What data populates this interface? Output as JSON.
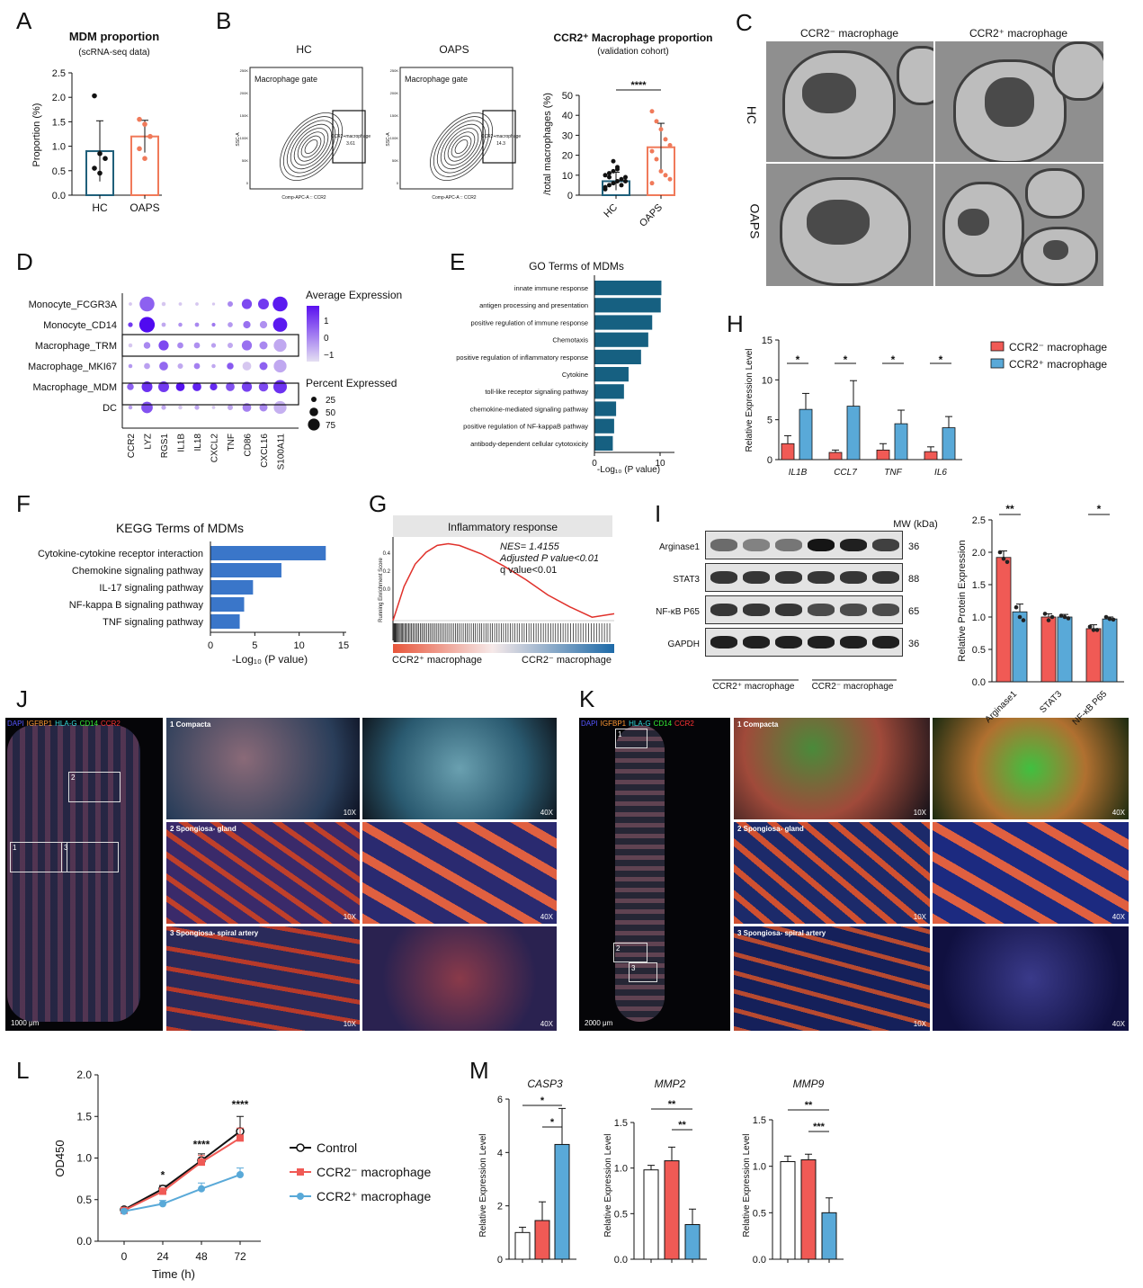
{
  "panels": {
    "A": "A",
    "B": "B",
    "C": "C",
    "D": "D",
    "E": "E",
    "F": "F",
    "G": "G",
    "H": "H",
    "I": "I",
    "J": "J",
    "K": "K",
    "L": "L",
    "M": "M"
  },
  "A": {
    "title": "MDM proportion",
    "subtitle": "(scRNA-seq data)",
    "ylabel": "Proportion (%)",
    "yticks": [
      "0.0",
      "0.5",
      "1.0",
      "1.5",
      "2.0",
      "2.5"
    ],
    "groups": [
      "HC",
      "OAPS"
    ]
  },
  "B": {
    "hc_title": "HC",
    "oaps_title": "OAPS",
    "gate": "Macrophage gate",
    "ssc": "SSC-A",
    "xaxis": "Comp-APC-A :: CCR2",
    "gate_label": "CCR2+macrophage",
    "hc_pct": "3.61",
    "oaps_pct": "14.3",
    "flow_yticks": [
      "250K",
      "200K",
      "150K",
      "100K",
      "50K",
      "0"
    ],
    "chart_title": "CCR2⁺ Macrophage proportion",
    "chart_subtitle": "(validation cohort)",
    "ylabel": "/total macrophages (%)",
    "yticks": [
      "0",
      "10",
      "20",
      "30",
      "40",
      "50"
    ],
    "sig": "****",
    "groups": [
      "HC",
      "OAPS"
    ]
  },
  "C": {
    "col1": "CCR2⁻ macrophage",
    "col2": "CCR2⁺ macrophage",
    "row1": "HC",
    "row2": "OAPS"
  },
  "D": {
    "rows": [
      "Monocyte_FCGR3A",
      "Monocyte_CD14",
      "Macrophage_TRM",
      "Macrophage_MKI67",
      "Macrophage_MDM",
      "DC"
    ],
    "genes": [
      "CCR2",
      "LYZ",
      "RGS1",
      "IL1B",
      "IL18",
      "CXCL2",
      "TNF",
      "CD86",
      "CXCL16",
      "S100A11"
    ],
    "legend_expr": "Average Expression",
    "expr_ticks": [
      "1",
      "0",
      "−1"
    ],
    "legend_pct": "Percent Expressed",
    "pct_ticks": [
      "25",
      "50",
      "75"
    ]
  },
  "E": {
    "title": "GO Terms of MDMs",
    "terms": [
      "innate immune response",
      "antigen processing and presentation",
      "positive regulation of immune response",
      "Chemotaxis",
      "positive regulation of inflammatory response",
      "Cytokine",
      "toll-like receptor signaling pathway",
      "chemokine-mediated signaling pathway",
      "positive regulation of NF-kappaB pathway",
      "antibody-dependent cellular cytotoxicity"
    ],
    "xticks": [
      "0",
      "10"
    ],
    "xlabel": "-Log₁₀ (P value)"
  },
  "F": {
    "title": "KEGG Terms of MDMs",
    "terms": [
      "Cytokine-cytokine receptor interaction",
      "Chemokine signaling pathway",
      "IL-17 signaling pathway",
      "NF-kappa B signaling pathway",
      "TNF signaling pathway"
    ],
    "xticks": [
      "0",
      "5",
      "10",
      "15"
    ],
    "xlabel": "-Log₁₀ (P value)"
  },
  "G": {
    "title": "Inflammatory response",
    "ylabel": "Running Enrichment Score",
    "nes": "NES= 1.4155",
    "adjp": "Adjusted P value<0.01",
    "qval": "q value<0.01",
    "yticks": [
      "0.4",
      "0.2",
      "0.0"
    ],
    "left": "CCR2⁺ macrophage",
    "right": "CCR2⁻ macrophage"
  },
  "H": {
    "ylabel": "Relative Expression Level",
    "yticks": [
      "0",
      "5",
      "10",
      "15"
    ],
    "genes": [
      "IL1B",
      "CCL7",
      "TNF",
      "IL6"
    ],
    "sig": "*",
    "legend": [
      "CCR2⁻ macrophage",
      "CCR2⁺ macrophage"
    ]
  },
  "I": {
    "mw": "MW (kDa)",
    "proteins": [
      "Arginase1",
      "STAT3",
      "NF-κB P65",
      "GAPDH"
    ],
    "kda": [
      "36",
      "88",
      "65",
      "36"
    ],
    "groups": [
      "CCR2⁺ macrophage",
      "CCR2⁻ macrophage"
    ],
    "ylabel": "Relative Protein Expression",
    "yticks": [
      "0.0",
      "0.5",
      "1.0",
      "1.5",
      "2.0",
      "2.5"
    ],
    "categories": [
      "Arginase1",
      "STAT3",
      "NF-κB P65"
    ],
    "sig1": "**",
    "sig3": "*"
  },
  "J": {
    "stain_labels": [
      "DAPI",
      "IGFBP1",
      "HLA-G",
      "CD14",
      "CCR2"
    ],
    "rows": [
      "1 Compacta",
      "2 Spongiosa- gland",
      "3 Spongiosa- spiral artery"
    ],
    "mag10": "10X",
    "mag40": "40X",
    "scale": "1000 μm",
    "boxes": [
      "1",
      "2",
      "3"
    ]
  },
  "K": {
    "stain_labels": [
      "DAPI",
      "IGFBP1",
      "HLA-G",
      "CD14",
      "CCR2"
    ],
    "rows": [
      "1 Compacta",
      "2 Spongiosa- gland",
      "3 Spongiosa- spiral artery"
    ],
    "mag10": "10X",
    "mag40": "40X",
    "scale": "2000 μm",
    "boxes": [
      "1",
      "2",
      "3"
    ]
  },
  "L": {
    "ylabel": "OD450",
    "xlabel": "Time (h)",
    "yticks": [
      "0.0",
      "0.5",
      "1.0",
      "1.5",
      "2.0"
    ],
    "xticks": [
      "0",
      "24",
      "48",
      "72"
    ],
    "sig": [
      "*",
      "****",
      "****"
    ],
    "legend": [
      "Control",
      "CCR2⁻ macrophage",
      "CCR2⁺ macrophage"
    ]
  },
  "M": {
    "genes": [
      "CASP3",
      "MMP2",
      "MMP9"
    ],
    "ylabel": "Relative Expression Level",
    "casp3_yticks": [
      "0",
      "2",
      "4",
      "6"
    ],
    "mmp2_yticks": [
      "0.0",
      "0.5",
      "1.0",
      "1.5"
    ],
    "mmp9_yticks": [
      "0.0",
      "0.5",
      "1.0",
      "1.5"
    ],
    "casp3_sig": [
      "*",
      "*"
    ],
    "mmp2_sig": [
      "**",
      "**"
    ],
    "mmp9_sig": [
      "**",
      "***"
    ]
  },
  "colors": {
    "teal": "#1f5f7a",
    "salmon": "#f07a5a",
    "red": "#f05a55",
    "blue": "#59a9d8",
    "navy": "#166081",
    "kegg": "#3a76c9",
    "gsea": "#e0302a"
  },
  "chart_data": [
    {
      "type": "bar",
      "panel": "A",
      "categories": [
        "HC",
        "OAPS"
      ],
      "values": [
        0.9,
        1.2
      ],
      "errors": [
        0.62,
        0.33
      ],
      "points": [
        [
          2.03,
          0.85,
          0.75,
          0.55,
          0.45
        ],
        [
          1.55,
          1.45,
          1.2,
          0.95,
          0.75
        ]
      ],
      "ylabel": "Proportion (%)",
      "ylim": [
        0,
        2.5
      ]
    },
    {
      "type": "bar",
      "panel": "B",
      "categories": [
        "HC",
        "OAPS"
      ],
      "values": [
        7,
        24
      ],
      "errors": [
        4.5,
        12
      ],
      "ylabel": "/total macrophages (%)",
      "ylim": [
        0,
        50
      ]
    },
    {
      "type": "heatmap",
      "panel": "D",
      "rows": [
        "Monocyte_FCGR3A",
        "Monocyte_CD14",
        "Macrophage_TRM",
        "Macrophage_MKI67",
        "Macrophage_MDM",
        "DC"
      ],
      "genes": [
        "CCR2",
        "LYZ",
        "RGS1",
        "IL1B",
        "IL18",
        "CXCL2",
        "TNF",
        "CD86",
        "CXCL16",
        "S100A11"
      ],
      "expr": [
        [
          -1,
          0.3,
          -1,
          -1,
          -1,
          -1,
          -0.2,
          0.6,
          0.8,
          1.2
        ],
        [
          0.8,
          1.4,
          -0.6,
          -0.3,
          -0.2,
          0,
          -0.4,
          0.1,
          -0.3,
          1.2
        ],
        [
          -1,
          -0.2,
          0.6,
          -0.2,
          -0.3,
          -0.5,
          -0.6,
          0.1,
          -0.2,
          -0.6
        ],
        [
          -0.4,
          -0.5,
          0.2,
          -0.6,
          -0.1,
          -0.6,
          0.4,
          -1,
          0.3,
          -0.6
        ],
        [
          0.3,
          0.9,
          0.8,
          1.3,
          1.1,
          1.0,
          0.5,
          0.7,
          0.6,
          0.9
        ],
        [
          -0.5,
          0.5,
          -0.6,
          -1,
          -0.6,
          -1,
          -0.6,
          -0.1,
          -0.2,
          -0.7
        ]
      ],
      "pct": [
        [
          5,
          90,
          10,
          5,
          5,
          2,
          20,
          55,
          60,
          90
        ],
        [
          15,
          95,
          12,
          10,
          12,
          8,
          18,
          35,
          35,
          85
        ],
        [
          10,
          30,
          55,
          25,
          25,
          15,
          20,
          55,
          40,
          75
        ],
        [
          10,
          25,
          45,
          20,
          25,
          10,
          30,
          45,
          40,
          75
        ],
        [
          30,
          60,
          60,
          45,
          45,
          35,
          45,
          55,
          50,
          80
        ],
        [
          10,
          65,
          15,
          10,
          15,
          5,
          20,
          45,
          40,
          75
        ]
      ]
    },
    {
      "type": "bar",
      "panel": "E",
      "orientation": "horizontal",
      "categories": [
        "innate immune response",
        "antigen processing and presentation",
        "positive regulation of immune response",
        "Chemotaxis",
        "positive regulation of inflammatory response",
        "Cytokine",
        "toll-like receptor signaling pathway",
        "chemokine-mediated signaling pathway",
        "positive regulation of NF-kappaB pathway",
        "antibody-dependent cellular cytotoxicity"
      ],
      "values": [
        10.2,
        10.1,
        8.8,
        8.2,
        7.1,
        5.2,
        4.5,
        3.3,
        3.0,
        2.8
      ],
      "xlim": [
        0,
        12
      ]
    },
    {
      "type": "bar",
      "panel": "F",
      "orientation": "horizontal",
      "categories": [
        "Cytokine-cytokine receptor interaction",
        "Chemokine signaling pathway",
        "IL-17 signaling pathway",
        "NF-kappa B signaling pathway",
        "TNF signaling pathway"
      ],
      "values": [
        13,
        8,
        4.8,
        3.8,
        3.3
      ],
      "xlim": [
        0,
        15
      ]
    },
    {
      "type": "line",
      "panel": "G",
      "x": [
        0,
        0.05,
        0.1,
        0.15,
        0.2,
        0.25,
        0.3,
        0.4,
        0.5,
        0.6,
        0.7,
        0.8,
        0.9,
        1.0
      ],
      "values": [
        0.0,
        0.2,
        0.33,
        0.4,
        0.44,
        0.45,
        0.44,
        0.39,
        0.32,
        0.24,
        0.15,
        0.08,
        0.02,
        0.04
      ],
      "ylim": [
        0,
        0.5
      ]
    },
    {
      "type": "bar",
      "panel": "H",
      "categories": [
        "IL1B",
        "CCL7",
        "TNF",
        "IL6"
      ],
      "series": [
        {
          "name": "CCR2⁻ macrophage",
          "values": [
            2.0,
            0.9,
            1.2,
            1.0
          ],
          "errors": [
            1.0,
            0.3,
            0.8,
            0.6
          ]
        },
        {
          "name": "CCR2⁺ macrophage",
          "values": [
            6.3,
            6.7,
            4.5,
            4.0
          ],
          "errors": [
            2.0,
            3.2,
            1.7,
            1.4
          ]
        }
      ],
      "ylim": [
        0,
        15
      ]
    },
    {
      "type": "bar",
      "panel": "I",
      "categories": [
        "Arginase1",
        "STAT3",
        "NF-κB P65"
      ],
      "series": [
        {
          "name": "CCR2⁻ macrophage",
          "values": [
            1.92,
            1.0,
            0.82
          ],
          "errors": [
            0.1,
            0.05,
            0.06
          ],
          "points": [
            [
              2.0,
              1.9,
              1.85
            ],
            [
              1.05,
              0.95,
              1.0
            ],
            [
              0.85,
              0.8,
              0.8
            ]
          ]
        },
        {
          "name": "CCR2⁺ macrophage",
          "values": [
            1.08,
            1.0,
            0.97
          ],
          "errors": [
            0.12,
            0.04,
            0.03
          ],
          "points": [
            [
              1.15,
              1.0,
              0.95
            ],
            [
              1.02,
              1.0,
              0.98
            ],
            [
              1.0,
              0.97,
              0.96
            ]
          ]
        }
      ],
      "ylim": [
        0,
        2.5
      ]
    },
    {
      "type": "line",
      "panel": "L",
      "x": [
        0,
        24,
        48,
        72
      ],
      "series": [
        {
          "name": "Control",
          "values": [
            0.38,
            0.63,
            0.97,
            1.32
          ],
          "errors": [
            0.02,
            0.04,
            0.08,
            0.18
          ]
        },
        {
          "name": "CCR2⁻ macrophage",
          "values": [
            0.37,
            0.6,
            0.95,
            1.24
          ],
          "errors": [
            0.02,
            0.04,
            0.08,
            0.12
          ]
        },
        {
          "name": "CCR2⁺ macrophage",
          "values": [
            0.36,
            0.45,
            0.63,
            0.8
          ],
          "errors": [
            0.02,
            0.04,
            0.07,
            0.08
          ]
        }
      ],
      "ylim": [
        0,
        2.0
      ]
    },
    {
      "type": "bar",
      "panel": "M",
      "gene": "CASP3",
      "categories": [
        "Control",
        "CCR2⁻ macrophage",
        "CCR2⁺ macrophage"
      ],
      "values": [
        1.0,
        1.45,
        4.3
      ],
      "errors": [
        0.2,
        0.7,
        1.35
      ],
      "ylim": [
        0,
        6
      ]
    },
    {
      "type": "bar",
      "panel": "M",
      "gene": "MMP2",
      "categories": [
        "Control",
        "CCR2⁻ macrophage",
        "CCR2⁺ macrophage"
      ],
      "values": [
        0.98,
        1.08,
        0.38
      ],
      "errors": [
        0.05,
        0.15,
        0.17
      ],
      "ylim": [
        0,
        1.5
      ]
    },
    {
      "type": "bar",
      "panel": "M",
      "gene": "MMP9",
      "categories": [
        "Control",
        "CCR2⁻ macrophage",
        "CCR2⁺ macrophage"
      ],
      "values": [
        1.05,
        1.07,
        0.5
      ],
      "errors": [
        0.06,
        0.06,
        0.16
      ],
      "ylim": [
        0,
        1.5
      ]
    }
  ]
}
